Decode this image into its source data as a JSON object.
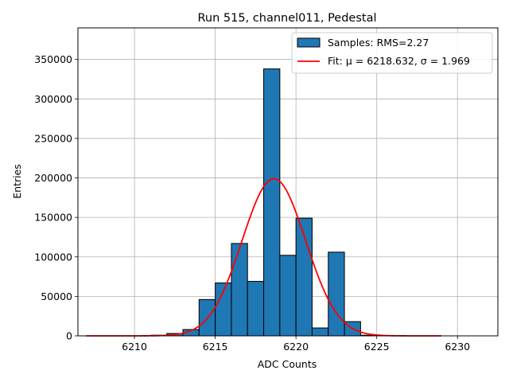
{
  "chart_data": {
    "type": "bar",
    "title": "Run 515, channel011, Pedestal",
    "xlabel": "ADC Counts",
    "ylabel": "Entries",
    "xlim": [
      6206.5,
      6232.5
    ],
    "ylim": [
      0,
      390000
    ],
    "xticks": [
      6210,
      6215,
      6220,
      6225,
      6230
    ],
    "yticks": [
      0,
      50000,
      100000,
      150000,
      200000,
      250000,
      300000,
      350000
    ],
    "grid": true,
    "legend_position": "top-right",
    "histogram": {
      "name": "Samples: RMS=2.27",
      "color": "#1f77b4",
      "edge_color": "#000000",
      "bins": [
        {
          "x0": 6211,
          "x1": 6212,
          "value": 800
        },
        {
          "x0": 6212,
          "x1": 6213,
          "value": 3000
        },
        {
          "x0": 6213,
          "x1": 6214,
          "value": 8000
        },
        {
          "x0": 6214,
          "x1": 6215,
          "value": 46000
        },
        {
          "x0": 6215,
          "x1": 6216,
          "value": 67000
        },
        {
          "x0": 6216,
          "x1": 6217,
          "value": 117000
        },
        {
          "x0": 6217,
          "x1": 6218,
          "value": 69000
        },
        {
          "x0": 6218,
          "x1": 6219,
          "value": 338000
        },
        {
          "x0": 6219,
          "x1": 6220,
          "value": 102000
        },
        {
          "x0": 6220,
          "x1": 6221,
          "value": 149000
        },
        {
          "x0": 6221,
          "x1": 6222,
          "value": 10000
        },
        {
          "x0": 6222,
          "x1": 6223,
          "value": 106000
        },
        {
          "x0": 6223,
          "x1": 6224,
          "value": 18000
        },
        {
          "x0": 6224,
          "x1": 6225,
          "value": 800
        }
      ]
    },
    "fit": {
      "name": "Fit: μ = 6218.632, σ = 1.969",
      "color": "#ff0000",
      "mu": 6218.632,
      "sigma": 1.969,
      "amplitude": 199000,
      "x_range": [
        6207,
        6229
      ]
    }
  }
}
